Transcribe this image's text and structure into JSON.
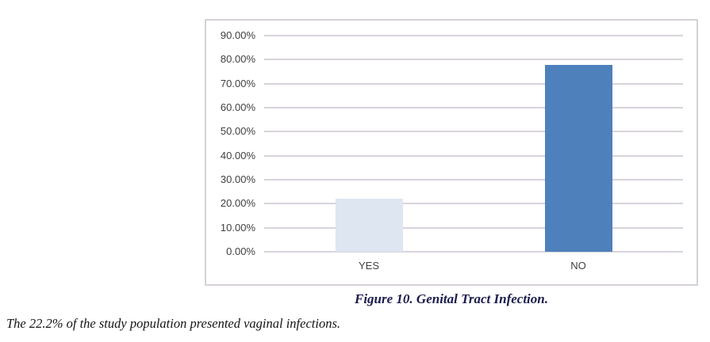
{
  "chart_data": {
    "type": "bar",
    "title": "",
    "xlabel": "",
    "ylabel": "",
    "categories": [
      "YES",
      "NO"
    ],
    "values": [
      22.2,
      77.8
    ],
    "bar_colors": [
      "#dde6f1",
      "#4e80bc"
    ],
    "ylim": [
      0,
      90
    ],
    "y_tick_step": 10,
    "y_tick_labels": [
      "0.00%",
      "10.00%",
      "20.00%",
      "30.00%",
      "40.00%",
      "50.00%",
      "60.00%",
      "70.00%",
      "80.00%",
      "90.00%"
    ],
    "grid": true,
    "legend": false,
    "gridline_color": "#d9d3dc",
    "frame_border_color": "#d6d0d8",
    "tick_label_color": "#404040"
  },
  "figure_caption": "Figure 10. Genital Tract Infection.",
  "note_text": "The 22.2% of the study population presented vaginal infections."
}
